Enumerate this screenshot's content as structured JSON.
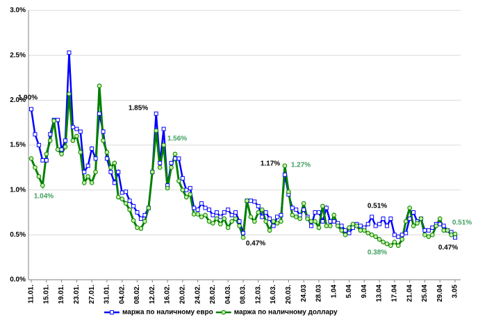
{
  "chart_data": {
    "type": "line",
    "categories": [
      "11.01.",
      null,
      null,
      null,
      "15.01.",
      null,
      null,
      null,
      "19.01.",
      null,
      null,
      null,
      "23.01.",
      null,
      null,
      null,
      "27.01.",
      null,
      null,
      null,
      "31.01.",
      null,
      null,
      null,
      "04.02.",
      null,
      null,
      null,
      "08.02.",
      null,
      null,
      null,
      "12.02.",
      null,
      null,
      null,
      "16.02.",
      null,
      null,
      null,
      "20.02.",
      null,
      null,
      null,
      "24.02.",
      null,
      null,
      null,
      "28.02.",
      null,
      null,
      null,
      "04.03.",
      null,
      null,
      null,
      "08.03.",
      null,
      null,
      null,
      "12.03.",
      null,
      null,
      null,
      "16.03.",
      null,
      null,
      null,
      "20.03.",
      null,
      null,
      null,
      "24.03",
      null,
      null,
      null,
      "28.03",
      null,
      null,
      null,
      "1.04",
      null,
      null,
      null,
      "5.04",
      null,
      null,
      null,
      "9.04",
      null,
      null,
      null,
      "13.04",
      null,
      null,
      null,
      "17.04",
      null,
      null,
      null,
      "21.04",
      null,
      null,
      null,
      "25.04",
      null,
      null,
      null,
      "29.04",
      null,
      null,
      null,
      "3.05"
    ],
    "series": [
      {
        "name": "маржа по наличному евро",
        "color": "#0000ff",
        "marker": "square",
        "values": [
          1.9,
          1.62,
          1.5,
          1.33,
          1.33,
          1.62,
          1.78,
          1.78,
          1.45,
          1.55,
          2.53,
          1.7,
          1.68,
          1.65,
          1.2,
          1.27,
          1.46,
          1.35,
          1.85,
          1.65,
          1.35,
          1.2,
          1.08,
          1.2,
          0.97,
          0.98,
          0.88,
          0.82,
          0.75,
          0.68,
          0.72,
          0.8,
          1.2,
          1.85,
          1.3,
          1.68,
          1.05,
          1.3,
          1.35,
          1.35,
          1.13,
          1.0,
          1.02,
          0.8,
          0.78,
          0.85,
          0.8,
          0.78,
          0.72,
          0.75,
          0.7,
          0.75,
          0.78,
          0.72,
          0.75,
          0.65,
          0.52,
          0.88,
          0.88,
          0.87,
          0.82,
          0.7,
          0.75,
          0.68,
          0.6,
          0.7,
          0.72,
          1.17,
          0.95,
          0.8,
          0.78,
          0.72,
          0.78,
          0.7,
          0.6,
          0.75,
          0.75,
          0.65,
          0.8,
          0.65,
          0.65,
          0.63,
          0.6,
          0.55,
          0.52,
          0.58,
          0.62,
          0.6,
          0.58,
          0.62,
          0.7,
          0.6,
          0.62,
          0.68,
          0.6,
          0.68,
          0.5,
          0.48,
          0.5,
          0.52,
          0.68,
          0.75,
          0.65,
          0.68,
          0.55,
          0.55,
          0.58,
          0.62,
          0.62,
          0.6,
          0.55,
          0.53,
          0.47
        ]
      },
      {
        "name": "маржа по наличному доллару",
        "color": "#008000",
        "marker": "circle",
        "values": [
          1.35,
          1.25,
          1.15,
          1.05,
          1.4,
          1.55,
          1.77,
          1.45,
          1.4,
          1.48,
          2.07,
          1.55,
          1.6,
          1.42,
          1.08,
          1.15,
          1.08,
          1.2,
          2.16,
          1.55,
          1.42,
          1.25,
          1.3,
          0.92,
          0.9,
          0.85,
          0.78,
          0.66,
          0.58,
          0.57,
          0.65,
          0.8,
          1.2,
          1.66,
          1.25,
          1.5,
          1.02,
          1.25,
          1.4,
          1.1,
          1.0,
          0.92,
          0.95,
          0.73,
          0.73,
          0.7,
          0.72,
          0.65,
          0.63,
          0.68,
          0.62,
          0.68,
          0.58,
          0.65,
          0.68,
          0.6,
          0.47,
          0.88,
          0.7,
          0.65,
          0.75,
          0.78,
          0.65,
          0.55,
          0.65,
          0.63,
          0.65,
          1.27,
          0.98,
          0.72,
          0.7,
          0.68,
          0.85,
          0.68,
          0.65,
          0.65,
          0.58,
          0.82,
          0.6,
          0.6,
          0.72,
          0.6,
          0.55,
          0.5,
          0.58,
          0.62,
          0.6,
          0.55,
          0.55,
          0.52,
          0.5,
          0.48,
          0.45,
          0.42,
          0.4,
          0.38,
          0.42,
          0.38,
          0.45,
          0.65,
          0.8,
          0.6,
          0.63,
          0.68,
          0.5,
          0.48,
          0.5,
          0.6,
          0.68,
          0.55,
          0.55,
          0.5,
          0.51
        ]
      }
    ],
    "ylim": [
      0,
      3
    ],
    "yticks": [
      {
        "value": 0,
        "label": "0.0%"
      },
      {
        "value": 0.5,
        "label": "0.5%"
      },
      {
        "value": 1,
        "label": "1.0%"
      },
      {
        "value": 1.5,
        "label": "1.5%"
      },
      {
        "value": 2,
        "label": "2.0%"
      },
      {
        "value": 2.5,
        "label": "2.5%"
      },
      {
        "value": 3,
        "label": "3.0%"
      }
    ],
    "grid": true,
    "legend": "bottom",
    "annotations": [
      {
        "text": "1.90%",
        "color": "#000000"
      },
      {
        "text": "1.04%",
        "color": "#3f9f5f"
      },
      {
        "text": "1.85%",
        "color": "#000000"
      },
      {
        "text": "1.56%",
        "color": "#3f9f5f"
      },
      {
        "text": "1.17%",
        "color": "#000000"
      },
      {
        "text": "1.27%",
        "color": "#3f9f5f"
      },
      {
        "text": "0.47%",
        "color": "#000000"
      },
      {
        "text": "0.51%",
        "color": "#000000"
      },
      {
        "text": "0.38%",
        "color": "#3f9f5f"
      },
      {
        "text": "0.51%",
        "color": "#3f9f5f"
      },
      {
        "text": "0.47%",
        "color": "#000000"
      }
    ]
  }
}
